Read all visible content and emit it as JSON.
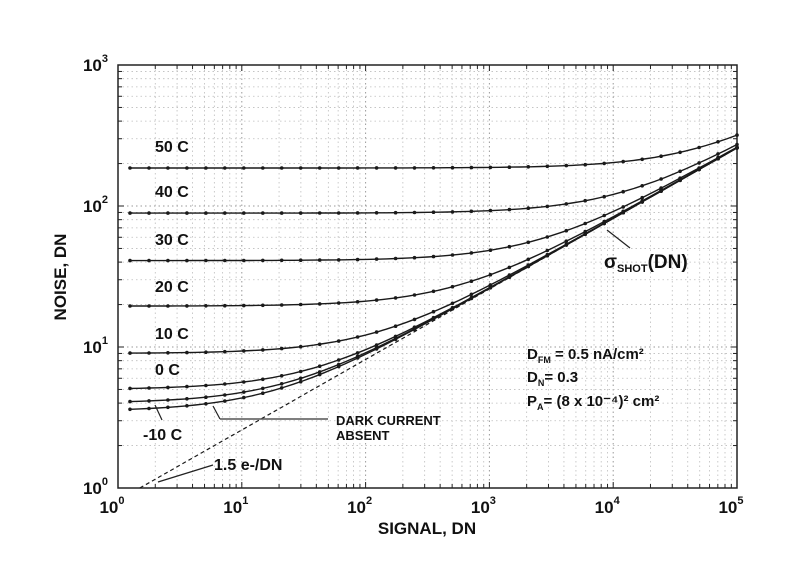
{
  "chart_data": {
    "type": "line",
    "title": "",
    "xlabel": "SIGNAL, DN",
    "ylabel": "NOISE, DN",
    "xscale": "log",
    "yscale": "log",
    "xlim": [
      1,
      100000
    ],
    "ylim": [
      1,
      1000
    ],
    "grid": true,
    "x_tick_labels": [
      "10^0",
      "10^1",
      "10^2",
      "10^3",
      "10^4",
      "10^5"
    ],
    "y_tick_labels": [
      "10^0",
      "10^1",
      "10^2",
      "10^3"
    ],
    "x": [
      1.25,
      10,
      100,
      1000,
      10000,
      100000
    ],
    "series": [
      {
        "name": "50 C",
        "values": [
          186,
          186,
          186,
          188,
          203,
          316
        ]
      },
      {
        "name": "40 C",
        "values": [
          89,
          89,
          89.4,
          92.7,
          120,
          273
        ]
      },
      {
        "name": "30 C",
        "values": [
          41,
          41.1,
          41.8,
          48.5,
          91.3,
          261
        ]
      },
      {
        "name": "20 C",
        "values": [
          19.5,
          19.7,
          21.1,
          32.3,
          83.9,
          259
        ]
      },
      {
        "name": "10 C",
        "values": [
          9.0,
          9.4,
          12.2,
          27.3,
          82.1,
          258
        ]
      },
      {
        "name": "0 C",
        "values": [
          5.0,
          5.6,
          9.6,
          26.3,
          81.8,
          258
        ]
      },
      {
        "name": "-10 C",
        "values": [
          4.0,
          4.7,
          9.1,
          26.1,
          81.7,
          258
        ]
      },
      {
        "name": "DARK CURRENT ABSENT",
        "values": [
          3.5,
          4.2,
          8.8,
          26.0,
          81.7,
          258
        ]
      },
      {
        "name": "σSHOT(DN) 1.5 e-/DN",
        "style": "dashed",
        "x": [
          1.5,
          10,
          100,
          1000,
          10000,
          100000
        ],
        "values": [
          1.0,
          2.58,
          8.16,
          25.8,
          81.6,
          258
        ]
      }
    ],
    "annotations": {
      "temp_labels": [
        "50 C",
        "40 C",
        "30 C",
        "20 C",
        "10 C",
        "0 C",
        "-10 C"
      ],
      "dark_current_absent": [
        "DARK CURRENT",
        "ABSENT"
      ],
      "shot_label": {
        "sigma": "σ",
        "sub": "SHOT",
        "suffix": "(DN)"
      },
      "conversion_gain": "1.5 e-/DN",
      "params": [
        {
          "main": "D",
          "sub": "FM",
          "rest": " = 0.5 nA/cm²"
        },
        {
          "main": "D",
          "sub": "N",
          "rest": "= 0.3"
        },
        {
          "main": "P",
          "sub": "A",
          "rest": "= (8 x 10⁻⁴)² cm²"
        }
      ]
    }
  }
}
